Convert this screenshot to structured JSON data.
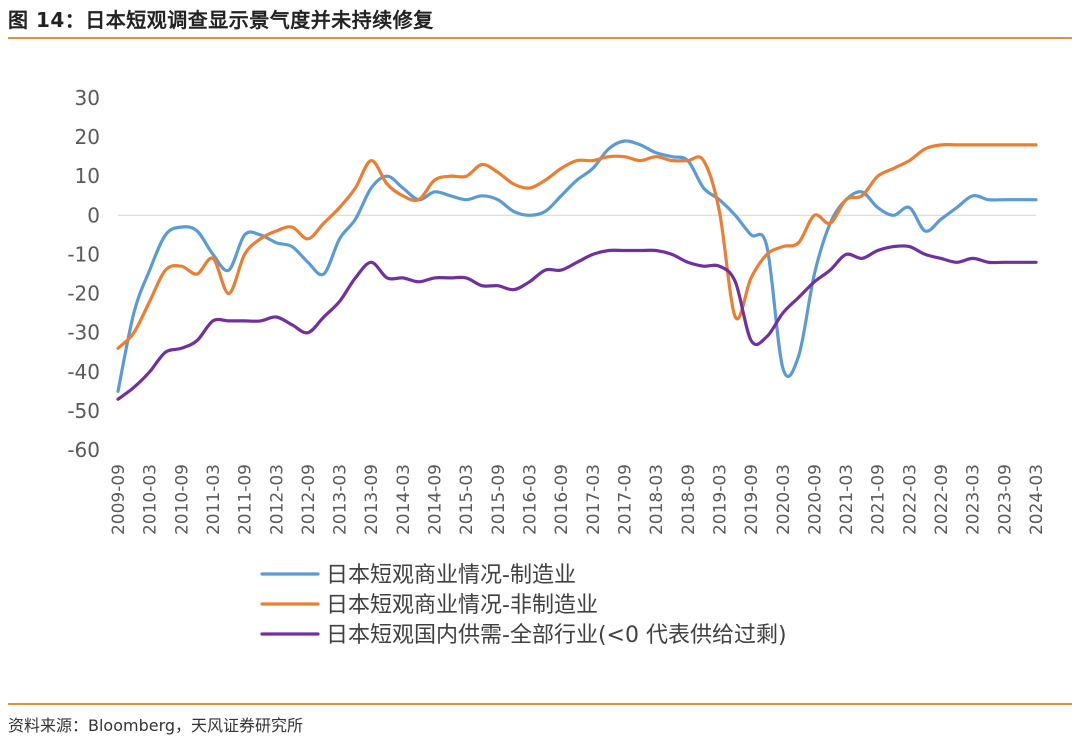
{
  "header": {
    "title": "图 14：日本短观调查显示景气度并未持续修复"
  },
  "footer": {
    "source": "资料来源：Bloomberg，天风证券研究所"
  },
  "chart_data": {
    "type": "line",
    "ylim": [
      -60,
      30
    ],
    "yticks": [
      30,
      20,
      10,
      0,
      -10,
      -20,
      -30,
      -40,
      -50,
      -60
    ],
    "xtick_labels": [
      "2009-09",
      "2010-03",
      "2010-09",
      "2011-03",
      "2011-09",
      "2012-03",
      "2012-09",
      "2013-03",
      "2013-09",
      "2014-03",
      "2014-09",
      "2015-03",
      "2015-09",
      "2016-03",
      "2016-09",
      "2017-03",
      "2017-09",
      "2018-03",
      "2018-09",
      "2019-03",
      "2019-09",
      "2020-03",
      "2020-09",
      "2021-03",
      "2021-09",
      "2022-03",
      "2022-09",
      "2023-03",
      "2023-09",
      "2024-03"
    ],
    "x": [
      "2009-09",
      "2009-12",
      "2010-03",
      "2010-06",
      "2010-09",
      "2010-12",
      "2011-03",
      "2011-06",
      "2011-09",
      "2011-12",
      "2012-03",
      "2012-06",
      "2012-09",
      "2012-12",
      "2013-03",
      "2013-06",
      "2013-09",
      "2013-12",
      "2014-03",
      "2014-06",
      "2014-09",
      "2014-12",
      "2015-03",
      "2015-06",
      "2015-09",
      "2015-12",
      "2016-03",
      "2016-06",
      "2016-09",
      "2016-12",
      "2017-03",
      "2017-06",
      "2017-09",
      "2017-12",
      "2018-03",
      "2018-06",
      "2018-09",
      "2018-12",
      "2019-03",
      "2019-06",
      "2019-09",
      "2019-12",
      "2020-03",
      "2020-06",
      "2020-09",
      "2020-12",
      "2021-03",
      "2021-06",
      "2021-09",
      "2021-12",
      "2022-03",
      "2022-06",
      "2022-09",
      "2022-12",
      "2023-03",
      "2023-06",
      "2023-09",
      "2023-12",
      "2024-03"
    ],
    "grid": false,
    "legend_position": "bottom",
    "series": [
      {
        "name": "日本短观商业情况-制造业",
        "color": "#5b9bd5",
        "values": [
          -45,
          -25,
          -14,
          -5,
          -3,
          -4,
          -10,
          -14,
          -5,
          -5,
          -7,
          -8,
          -12,
          -15,
          -6,
          -1,
          7,
          10,
          7,
          4,
          6,
          5,
          4,
          5,
          4,
          1,
          0,
          1,
          5,
          9,
          12,
          17,
          19,
          18,
          16,
          15,
          14,
          7,
          4,
          0,
          -5,
          -8,
          -39,
          -36,
          -15,
          -2,
          4,
          6,
          2,
          0,
          2,
          -4,
          -1,
          2,
          5,
          4,
          4,
          4,
          4
        ]
      },
      {
        "name": "日本短观商业情况-非制造业",
        "color": "#ed7d31",
        "values": [
          -34,
          -30,
          -22,
          -14,
          -13,
          -15,
          -11,
          -20,
          -10,
          -6,
          -4,
          -3,
          -6,
          -2,
          2,
          7,
          14,
          8,
          5,
          4,
          9,
          10,
          10,
          13,
          11,
          8,
          7,
          9,
          12,
          14,
          14,
          15,
          15,
          14,
          15,
          14,
          14,
          14,
          1,
          -26,
          -16,
          -10,
          -8,
          -7,
          0,
          -2,
          4,
          5,
          10,
          12,
          14,
          17,
          18,
          18,
          18,
          18,
          18,
          18,
          18
        ]
      },
      {
        "name": "日本短观国内供需-全部行业(<0 代表供给过剩)",
        "color": "#7030a0",
        "values": [
          -47,
          -44,
          -40,
          -35,
          -34,
          -32,
          -27,
          -27,
          -27,
          -27,
          -26,
          -28,
          -30,
          -26,
          -22,
          -16,
          -12,
          -16,
          -16,
          -17,
          -16,
          -16,
          -16,
          -18,
          -18,
          -19,
          -17,
          -14,
          -14,
          -12,
          -10,
          -9,
          -9,
          -9,
          -9,
          -10,
          -12,
          -13,
          -13,
          -17,
          -32,
          -31,
          -25,
          -21,
          -17,
          -14,
          -10,
          -11,
          -9,
          -8,
          -8,
          -10,
          -11,
          -12,
          -11,
          -12,
          -12,
          -12,
          -12
        ]
      }
    ]
  }
}
